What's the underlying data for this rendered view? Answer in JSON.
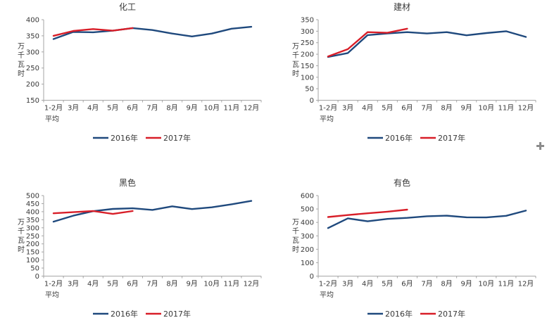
{
  "page": {
    "background": "#ffffff",
    "text_color": "#383838",
    "axis_color": "#a6a6a6"
  },
  "cursor": {
    "color": "#8c8c8c"
  },
  "chart_data": [
    {
      "type": "line",
      "title": "化工",
      "ylabel": "万千瓦时",
      "xlabel": "",
      "ylim": [
        150,
        400
      ],
      "ytick_step": 50,
      "grid": false,
      "legend_position": "bottom",
      "categories": [
        "1-2月\n平均",
        "3月",
        "4月",
        "5月",
        "6月",
        "7月",
        "8月",
        "9月",
        "10月",
        "11月",
        "12月"
      ],
      "series": [
        {
          "name": "2016年",
          "color": "#1f497d",
          "values": [
            340,
            362,
            361,
            366,
            374,
            368,
            357,
            348,
            357,
            372,
            378
          ]
        },
        {
          "name": "2017年",
          "color": "#d81e28",
          "values": [
            350,
            365,
            371,
            366,
            374
          ]
        }
      ]
    },
    {
      "type": "line",
      "title": "建材",
      "ylabel": "万千瓦时",
      "xlabel": "",
      "ylim": [
        0,
        350
      ],
      "ytick_step": 50,
      "grid": false,
      "legend_position": "bottom",
      "categories": [
        "1-2月\n平均",
        "3月",
        "4月",
        "5月",
        "6月",
        "7月",
        "8月",
        "9月",
        "10月",
        "11月",
        "12月"
      ],
      "series": [
        {
          "name": "2016年",
          "color": "#1f497d",
          "values": [
            188,
            205,
            283,
            290,
            296,
            290,
            296,
            282,
            292,
            300,
            275
          ]
        },
        {
          "name": "2017年",
          "color": "#d81e28",
          "values": [
            190,
            222,
            296,
            293,
            311
          ]
        }
      ]
    },
    {
      "type": "line",
      "title": "黑色",
      "ylabel": "万千瓦时",
      "xlabel": "",
      "ylim": [
        0,
        500
      ],
      "ytick_step": 50,
      "grid": false,
      "legend_position": "bottom",
      "categories": [
        "1-2月\n平均",
        "3月",
        "4月",
        "5月",
        "6月",
        "7月",
        "8月",
        "9月",
        "10月",
        "11月",
        "12月"
      ],
      "series": [
        {
          "name": "2016年",
          "color": "#1f497d",
          "values": [
            338,
            375,
            403,
            417,
            421,
            411,
            433,
            416,
            427,
            446,
            467
          ]
        },
        {
          "name": "2017年",
          "color": "#d81e28",
          "values": [
            390,
            397,
            404,
            386,
            404
          ]
        }
      ]
    },
    {
      "type": "line",
      "title": "有色",
      "ylabel": "万千瓦时",
      "xlabel": "",
      "ylim": [
        0,
        600
      ],
      "ytick_step": 100,
      "grid": false,
      "legend_position": "bottom",
      "categories": [
        "1-2月\n平均",
        "3月",
        "4月",
        "5月",
        "6月",
        "7月",
        "8月",
        "9月",
        "10月",
        "11月",
        "12月"
      ],
      "series": [
        {
          "name": "2016年",
          "color": "#1f497d",
          "values": [
            358,
            430,
            408,
            426,
            434,
            446,
            450,
            438,
            437,
            449,
            488
          ]
        },
        {
          "name": "2017年",
          "color": "#d81e28",
          "values": [
            440,
            455,
            468,
            480,
            495
          ]
        }
      ]
    }
  ]
}
